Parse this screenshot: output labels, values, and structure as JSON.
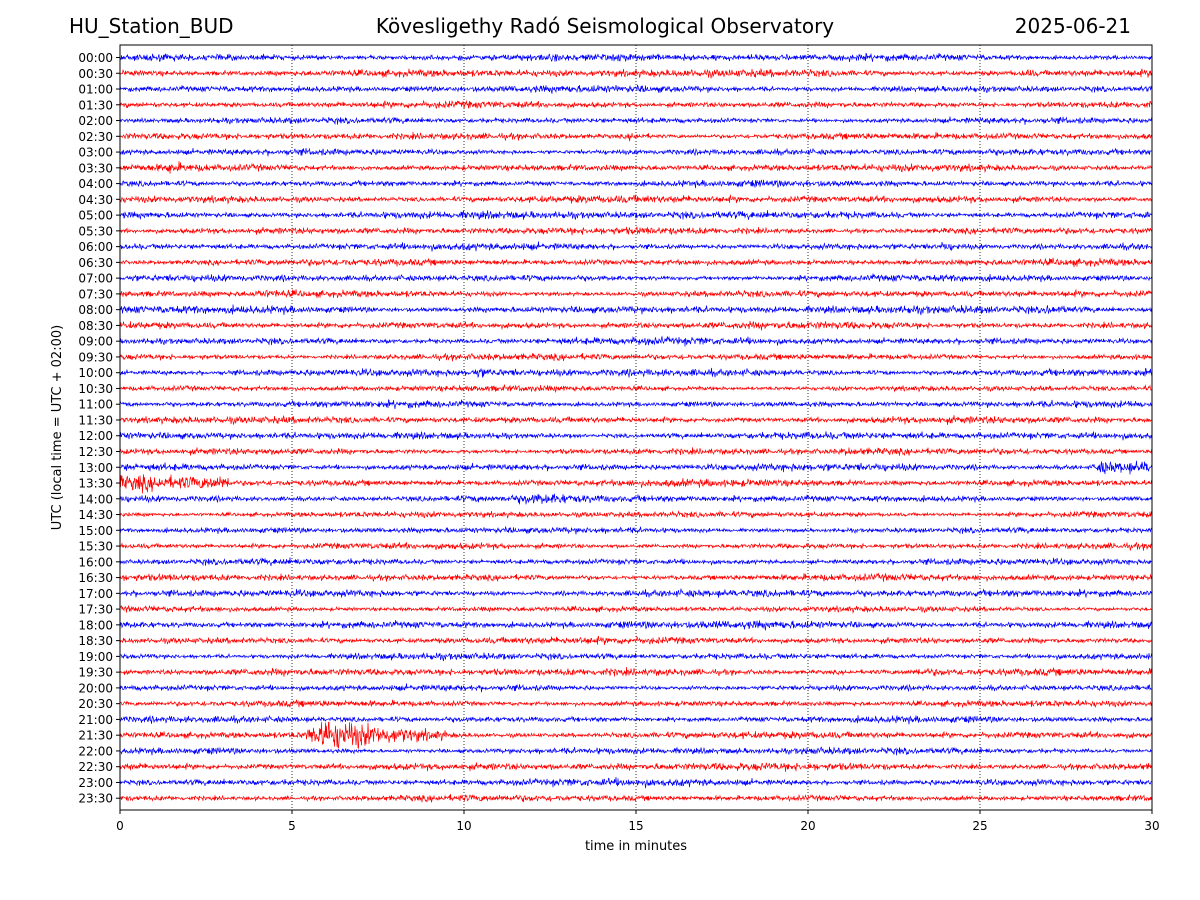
{
  "header": {
    "station": "HU_Station_BUD",
    "observatory": "Kövesligethy Radó Seismological Observatory",
    "date": "2025-06-21"
  },
  "chart_data": {
    "type": "line",
    "title": "Kövesligethy Radó Seismological Observatory",
    "xlabel": "time in minutes",
    "ylabel": "UTC (local time = UTC + 02:00)",
    "xlim": [
      0,
      30
    ],
    "xticks": [
      0,
      5,
      10,
      15,
      20,
      25,
      30
    ],
    "grid": "vertical dotted lines at each x tick",
    "row_labels": [
      "00:00",
      "00:30",
      "01:00",
      "01:30",
      "02:00",
      "02:30",
      "03:00",
      "03:30",
      "04:00",
      "04:30",
      "05:00",
      "05:30",
      "06:00",
      "06:30",
      "07:00",
      "07:30",
      "08:00",
      "08:30",
      "09:00",
      "09:30",
      "10:00",
      "10:30",
      "11:00",
      "11:30",
      "12:00",
      "12:30",
      "13:00",
      "13:30",
      "14:00",
      "14:30",
      "15:00",
      "15:30",
      "16:00",
      "16:30",
      "17:00",
      "17:30",
      "18:00",
      "18:30",
      "19:00",
      "19:30",
      "20:00",
      "20:30",
      "21:00",
      "21:30",
      "22:00",
      "22:30",
      "23:00",
      "23:30"
    ],
    "colors": [
      "#0000ff",
      "#ff0000"
    ],
    "color_rule": "rows alternate blue (xx:00) and red (xx:30)",
    "events": [
      {
        "row": "13:00",
        "start_min": 28.3,
        "end_min": 30,
        "scale": 3.2
      },
      {
        "row": "13:30",
        "start_min": 0,
        "end_min": 3.2,
        "scale": 3.5
      },
      {
        "row": "21:30",
        "start_min": 5.3,
        "end_min": 9.5,
        "scale": 6.0
      },
      {
        "row": "02:30",
        "start_min": 14.7,
        "end_min": 15.6,
        "scale": 2.2
      },
      {
        "row": "00:30",
        "start_min": 26.2,
        "end_min": 26.7,
        "scale": 2.0
      },
      {
        "row": "08:00",
        "start_min": 26.8,
        "end_min": 27.8,
        "scale": 1.8
      },
      {
        "row": "07:30",
        "start_min": 3.8,
        "end_min": 5.5,
        "scale": 1.6
      },
      {
        "row": "10:00",
        "start_min": 10.2,
        "end_min": 11.5,
        "scale": 1.7
      },
      {
        "row": "12:30",
        "start_min": 20.8,
        "end_min": 23.0,
        "scale": 1.6
      },
      {
        "row": "14:00",
        "start_min": 11.5,
        "end_min": 14.0,
        "scale": 1.6
      },
      {
        "row": "22:00",
        "start_min": 19.5,
        "end_min": 23.0,
        "scale": 1.5
      },
      {
        "row": "06:00",
        "start_min": 23.8,
        "end_min": 24.5,
        "scale": 1.8
      },
      {
        "row": "19:30",
        "start_min": 23.0,
        "end_min": 24.5,
        "scale": 1.6
      },
      {
        "row": "03:30",
        "start_min": 1.3,
        "end_min": 2.0,
        "scale": 1.8
      }
    ]
  }
}
